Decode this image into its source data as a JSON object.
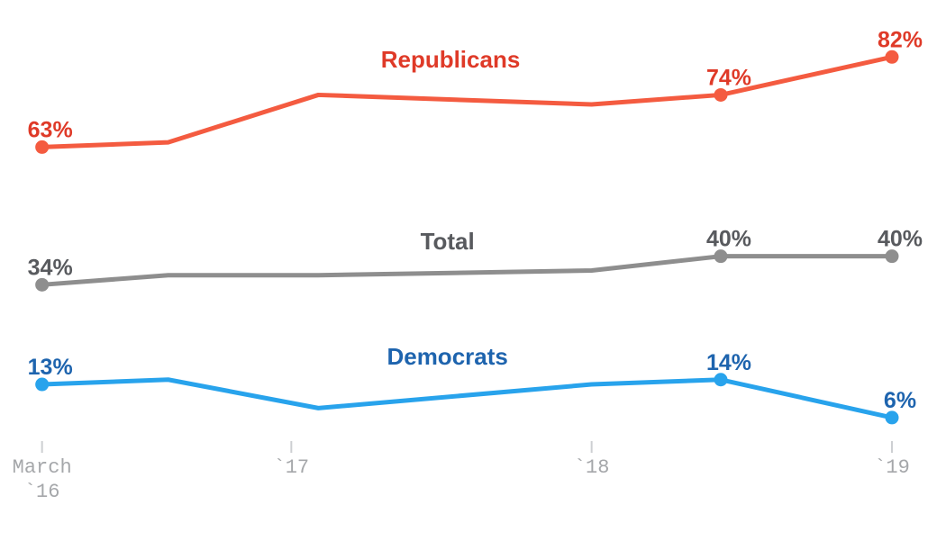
{
  "page": {
    "background": "#ffffff"
  },
  "chart_data": {
    "type": "line",
    "title": "",
    "xlabel": "",
    "ylabel": "",
    "x_unit": "year (survey waves)",
    "x": [
      2016.17,
      2016.59,
      2017.09,
      2018.0,
      2018.43,
      2019.0
    ],
    "xlim": [
      2016.03,
      2019.18
    ],
    "ylim": [
      -20,
      94
    ],
    "grid": false,
    "legend_position": "inline-series-labels",
    "series": [
      {
        "name": "Republicans",
        "values": [
          63,
          64,
          74,
          72,
          74,
          82
        ],
        "line_color": "#F45B40",
        "label_color": "#DF3A28",
        "labeled_points": {
          "0": "63%",
          "4": "74%",
          "5": "82%"
        },
        "name_anchor": {
          "x": 2017.53,
          "y": 81.5
        }
      },
      {
        "name": "Total",
        "values": [
          34,
          36,
          36,
          37,
          40,
          40
        ],
        "line_color": "#8E8E8E",
        "label_color": "#585A5E",
        "labeled_points": {
          "0": "34%",
          "4": "40%",
          "5": "40%"
        },
        "name_anchor": {
          "x": 2017.52,
          "y": 43.2
        }
      },
      {
        "name": "Democrats",
        "values": [
          13,
          14,
          8,
          13,
          14,
          6
        ],
        "line_color": "#28A3EC",
        "label_color": "#1E64AE",
        "labeled_points": {
          "0": "13%",
          "4": "14%",
          "5": "6%"
        },
        "name_anchor": {
          "x": 2017.52,
          "y": 18.9
        }
      }
    ],
    "x_axis": {
      "tick_color": "#CDCFD2",
      "label_color": "#A5A7AA",
      "ticks": [
        {
          "x": 2016.17,
          "lines": [
            "March",
            "`16"
          ]
        },
        {
          "x": 2017.0,
          "lines": [
            "`17"
          ]
        },
        {
          "x": 2018.0,
          "lines": [
            "`18"
          ]
        },
        {
          "x": 2019.0,
          "lines": [
            "`19"
          ]
        }
      ]
    },
    "notes": {
      "dot_marks": "dots drawn only on labeled points (first point and last two survey waves)",
      "unlabeled_values": "values at waves 2-4 estimated from line position"
    }
  }
}
